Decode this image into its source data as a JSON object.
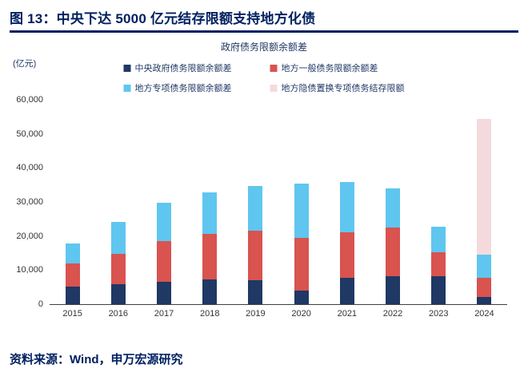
{
  "header": {
    "title": "图 13：中央下达 5000 亿元结存限额支持地方化债"
  },
  "chart": {
    "title": "政府债务限额余额差",
    "unit_label": "(亿元)"
  },
  "footer": {
    "source": "资料来源：Wind，申万宏源研究"
  },
  "colors": {
    "accent_navy": "#002060",
    "legend_text": "#1F3864",
    "axis_line": "#404040"
  },
  "chart_data": {
    "type": "bar",
    "stacked": true,
    "title": "政府债务限额余额差",
    "ylabel": "(亿元)",
    "ylim": [
      0,
      60000
    ],
    "ytick_interval": 10000,
    "ytick_labels": [
      "0",
      "10,000",
      "20,000",
      "30,000",
      "40,000",
      "50,000",
      "60,000"
    ],
    "grid": false,
    "legend_position": "top",
    "categories": [
      "2015",
      "2016",
      "2017",
      "2018",
      "2019",
      "2020",
      "2021",
      "2022",
      "2023",
      "2024"
    ],
    "series": [
      {
        "name": "中央政府债务限额余额差",
        "color": "#1F3864",
        "values": [
          5200,
          5800,
          6500,
          7200,
          7000,
          4100,
          7800,
          8200,
          8200,
          2100
        ]
      },
      {
        "name": "地方一般债务限额余额差",
        "color": "#D9534F",
        "values": [
          6700,
          8900,
          12100,
          13400,
          14600,
          15400,
          13300,
          14400,
          7100,
          5700
        ]
      },
      {
        "name": "地方专项债务限额余额差",
        "color": "#5FC6F0",
        "values": [
          5900,
          9500,
          11100,
          12100,
          13100,
          16000,
          14800,
          11500,
          7400,
          6700
        ]
      },
      {
        "name": "地方隐债置换专项债务结存限额",
        "color": "#F4DADD",
        "values": [
          0,
          0,
          0,
          0,
          0,
          0,
          0,
          0,
          0,
          40000
        ]
      }
    ]
  }
}
